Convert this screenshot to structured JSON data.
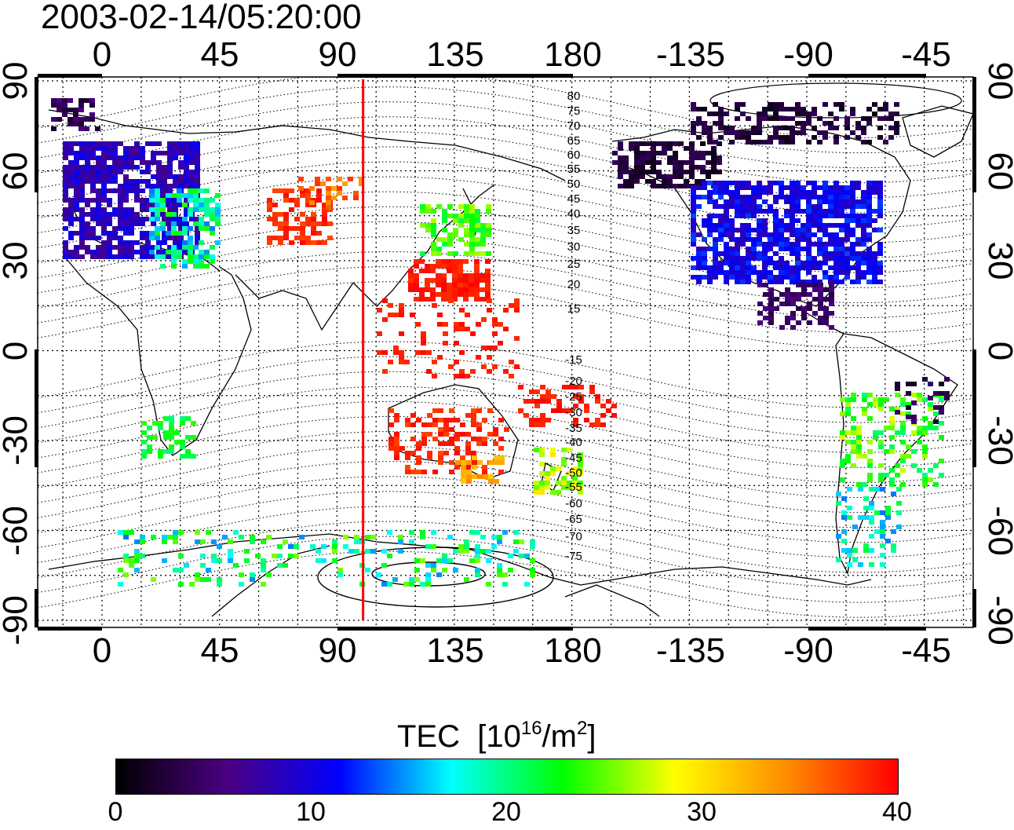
{
  "title": "2003-02-14/05:20:00",
  "map": {
    "top_axis_labels": [
      "0",
      "45",
      "90",
      "135",
      "180",
      "-135",
      "-90",
      "-45"
    ],
    "bottom_axis_labels": [
      "0",
      "45",
      "90",
      "135",
      "180",
      "-135",
      "-90",
      "-45"
    ],
    "left_axis_labels": [
      "90",
      "60",
      "30",
      "0",
      "-30",
      "-60",
      "-90"
    ],
    "right_axis_labels": [
      "90",
      "60",
      "30",
      "0",
      "-30",
      "-60",
      "-90"
    ],
    "contour_labels_north": [
      "80",
      "75",
      "70",
      "65",
      "60",
      "55",
      "50",
      "45",
      "40",
      "35",
      "30",
      "25",
      "20",
      "15"
    ],
    "contour_labels_south": [
      "-15",
      "-20",
      "-25",
      "-30",
      "-35",
      "-40",
      "-45",
      "-50",
      "-55",
      "-60",
      "-65",
      "-70",
      "-75"
    ],
    "marker_line_color": "#ff0000",
    "marker_longitude": 100
  },
  "colorbar": {
    "title_text": "TEC",
    "title_unit_base": "[10",
    "title_unit_exp": "16",
    "title_unit_mid": "/m",
    "title_unit_exp2": "2",
    "title_unit_end": "]",
    "ticks": [
      "0",
      "10",
      "20",
      "30",
      "40"
    ],
    "range": [
      0,
      40
    ],
    "colors": [
      "#000000",
      "#4b0082",
      "#0000ff",
      "#00ffff",
      "#00ff00",
      "#ffff00",
      "#ff8c00",
      "#ff0000"
    ]
  }
}
